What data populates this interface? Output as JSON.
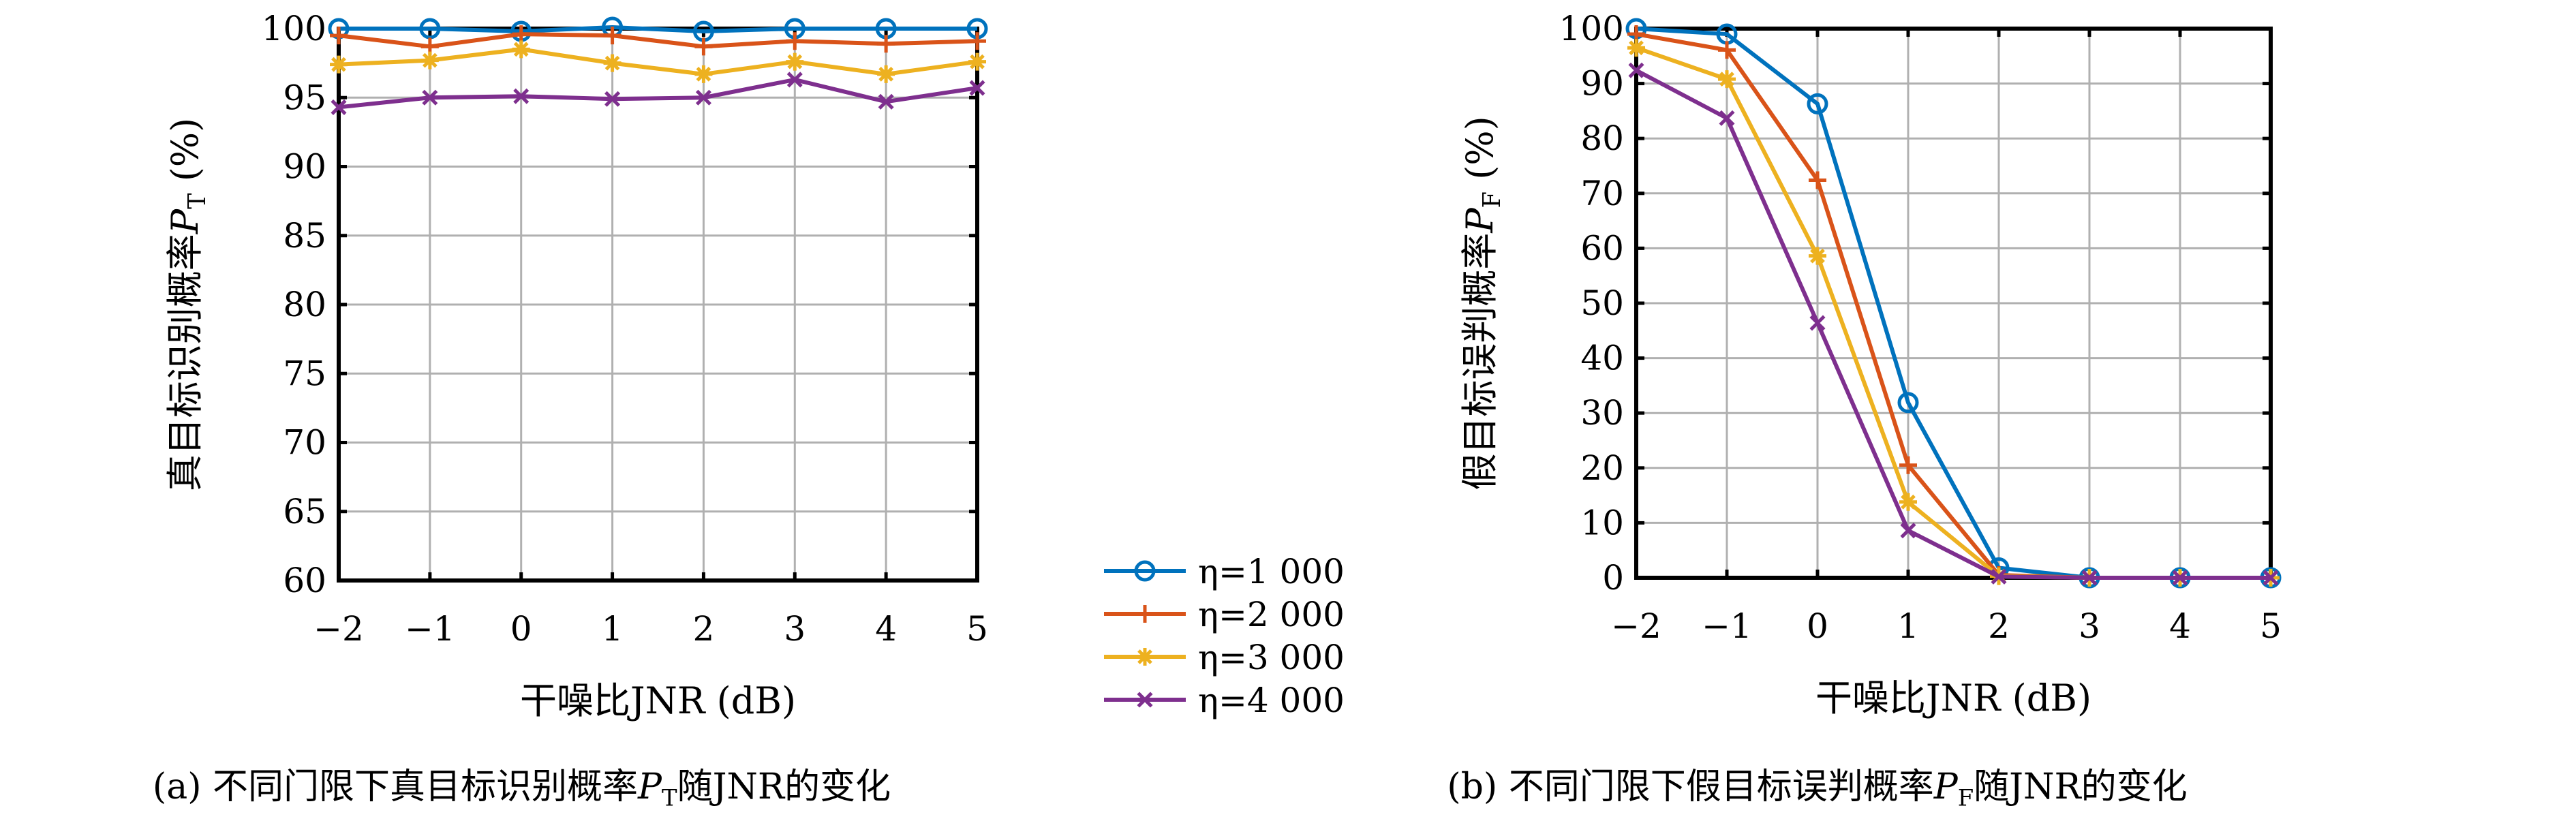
{
  "chart_data": [
    {
      "type": "line",
      "caption": "(a) 不同门限下真目标识别概率P_T随JNR的变化",
      "caption_parts": {
        "prefix": "(a) 不同门限下真目标识别概率",
        "sym": "P",
        "sub": "T",
        "suffix": "随JNR的变化"
      },
      "xlabel": "干噪比JNR (dB)",
      "ylabel_parts": {
        "prefix": "真目标识别概率",
        "sym": "P",
        "sub": "T",
        "suffix": " (%)"
      },
      "x": [
        -2,
        -1,
        0,
        1,
        2,
        3,
        4,
        5
      ],
      "xticks": [
        "−2",
        "−1",
        "0",
        "1",
        "2",
        "3",
        "4",
        "5"
      ],
      "xlim": [
        -2,
        5
      ],
      "ylim": [
        60,
        100
      ],
      "yticks": [
        60,
        65,
        70,
        75,
        80,
        85,
        90,
        95,
        100
      ],
      "grid": true,
      "series": [
        {
          "name": "η=1 000",
          "values": [
            100,
            100,
            99.8,
            100.1,
            99.8,
            100,
            100,
            100
          ]
        },
        {
          "name": "η=2 000",
          "values": [
            99.5,
            98.7,
            99.6,
            99.5,
            98.7,
            99.1,
            98.9,
            99.1
          ]
        },
        {
          "name": "η=3 000",
          "values": [
            97.4,
            97.7,
            98.5,
            97.5,
            96.7,
            97.6,
            96.7,
            97.6
          ]
        },
        {
          "name": "η=4 000",
          "values": [
            94.3,
            95.0,
            95.1,
            94.9,
            95.0,
            96.3,
            94.7,
            95.7
          ]
        }
      ]
    },
    {
      "type": "line",
      "caption": "(b) 不同门限下假目标误判概率P_F随JNR的变化",
      "caption_parts": {
        "prefix": "(b) 不同门限下假目标误判概率",
        "sym": "P",
        "sub": "F",
        "suffix": "随JNR的变化"
      },
      "xlabel": "干噪比JNR (dB)",
      "ylabel_parts": {
        "prefix": "假目标误判概率",
        "sym": "P",
        "sub": "F",
        "suffix": " (%)"
      },
      "x": [
        -2,
        -1,
        0,
        1,
        2,
        3,
        4,
        5
      ],
      "xticks": [
        "−2",
        "−1",
        "0",
        "1",
        "2",
        "3",
        "4",
        "5"
      ],
      "xlim": [
        -2,
        5
      ],
      "ylim": [
        0,
        100
      ],
      "yticks": [
        0,
        10,
        20,
        30,
        40,
        50,
        60,
        70,
        80,
        90,
        100
      ],
      "grid": true,
      "series": [
        {
          "name": "η=1 000",
          "values": [
            100,
            99,
            86.3,
            31.9,
            1.8,
            0,
            0,
            0
          ]
        },
        {
          "name": "η=2 000",
          "values": [
            99,
            96.1,
            72.4,
            20.5,
            0.5,
            0,
            0,
            0
          ]
        },
        {
          "name": "η=3 000",
          "values": [
            96.5,
            90.8,
            58.6,
            13.8,
            0.3,
            0,
            0,
            0
          ]
        },
        {
          "name": "η=4 000",
          "values": [
            92.4,
            83.7,
            46.4,
            8.6,
            0.2,
            0,
            0,
            0
          ]
        }
      ]
    }
  ],
  "legend": {
    "placement": "between-charts",
    "entries": [
      {
        "label": "η=1 000",
        "color": "#0072BD",
        "marker": "circle"
      },
      {
        "label": "η=2 000",
        "color": "#D95319",
        "marker": "plus"
      },
      {
        "label": "η=3 000",
        "color": "#EDB120",
        "marker": "asterisk"
      },
      {
        "label": "η=4 000",
        "color": "#7E2F8E",
        "marker": "x"
      }
    ]
  }
}
